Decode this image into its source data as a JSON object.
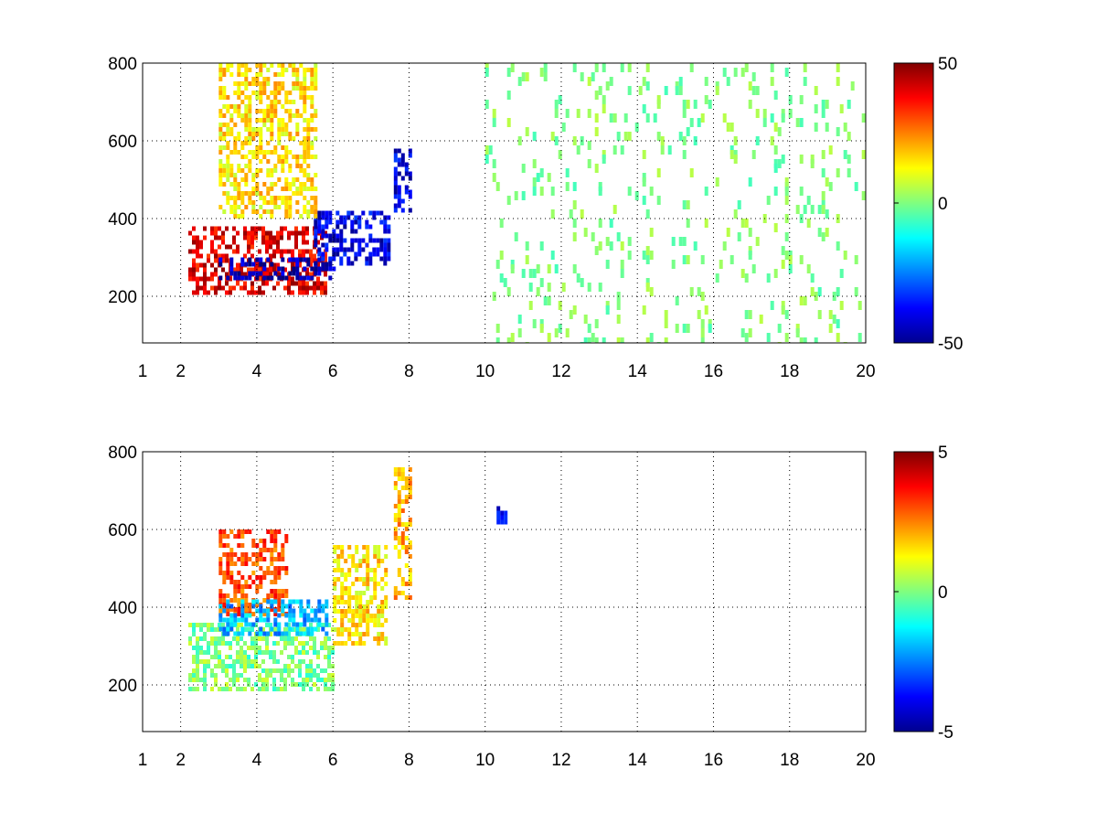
{
  "chart_data": [
    {
      "type": "heatmap",
      "title": "",
      "xlabel": "",
      "ylabel": "",
      "xlim": [
        1,
        20
      ],
      "ylim": [
        80,
        800
      ],
      "x_ticks": [
        1,
        2,
        4,
        6,
        8,
        10,
        12,
        14,
        16,
        18,
        20
      ],
      "y_ticks": [
        200,
        400,
        600,
        800
      ],
      "x_tick_labels": [
        "1",
        "2",
        "4",
        "6",
        "8",
        "10",
        "12",
        "14",
        "16",
        "18",
        "20"
      ],
      "y_tick_labels": [
        "200",
        "400",
        "600",
        "800"
      ],
      "grid": true,
      "colormap": "jet",
      "colorbar": {
        "min": -50,
        "max": 50,
        "ticks": [
          -50,
          0,
          50
        ],
        "tick_labels": [
          "-50",
          "0",
          "50"
        ]
      },
      "features": [
        {
          "x_range": [
            2.2,
            5.8
          ],
          "y_range": [
            210,
            380
          ],
          "value": 40
        },
        {
          "x_range": [
            3.0,
            6.0
          ],
          "y_range": [
            250,
            300
          ],
          "value": -45
        },
        {
          "x_range": [
            5.5,
            7.5
          ],
          "y_range": [
            280,
            420
          ],
          "value": -40
        },
        {
          "x_range": [
            7.6,
            8.0
          ],
          "y_range": [
            420,
            580
          ],
          "value": -40
        },
        {
          "x_range": [
            3.0,
            5.5
          ],
          "y_range": [
            400,
            800
          ],
          "value": 15
        },
        {
          "x_range": [
            10.0,
            20.0
          ],
          "y_range": [
            80,
            800
          ],
          "value": 0,
          "sparse": true
        }
      ]
    },
    {
      "type": "heatmap",
      "title": "",
      "xlabel": "",
      "ylabel": "",
      "xlim": [
        1,
        20
      ],
      "ylim": [
        80,
        800
      ],
      "x_ticks": [
        1,
        2,
        4,
        6,
        8,
        10,
        12,
        14,
        16,
        18,
        20
      ],
      "y_ticks": [
        200,
        400,
        600,
        800
      ],
      "x_tick_labels": [
        "1",
        "2",
        "4",
        "6",
        "8",
        "10",
        "12",
        "14",
        "16",
        "18",
        "20"
      ],
      "y_tick_labels": [
        "200",
        "400",
        "600",
        "800"
      ],
      "grid": true,
      "colormap": "jet",
      "colorbar": {
        "min": -5,
        "max": 5,
        "ticks": [
          -5,
          0,
          5
        ],
        "tick_labels": [
          "-5",
          "0",
          "5"
        ]
      },
      "features": [
        {
          "x_range": [
            3.0,
            4.8
          ],
          "y_range": [
            380,
            600
          ],
          "value": 3
        },
        {
          "x_range": [
            2.2,
            6.0
          ],
          "y_range": [
            190,
            360
          ],
          "value": 0
        },
        {
          "x_range": [
            3.0,
            5.8
          ],
          "y_range": [
            330,
            420
          ],
          "value": -2
        },
        {
          "x_range": [
            6.0,
            7.4
          ],
          "y_range": [
            310,
            560
          ],
          "value": 1.5
        },
        {
          "x_range": [
            7.6,
            8.0
          ],
          "y_range": [
            420,
            760
          ],
          "value": 2
        },
        {
          "x_range": [
            10.3,
            10.5
          ],
          "y_range": [
            620,
            660
          ],
          "value": -4
        }
      ]
    }
  ]
}
